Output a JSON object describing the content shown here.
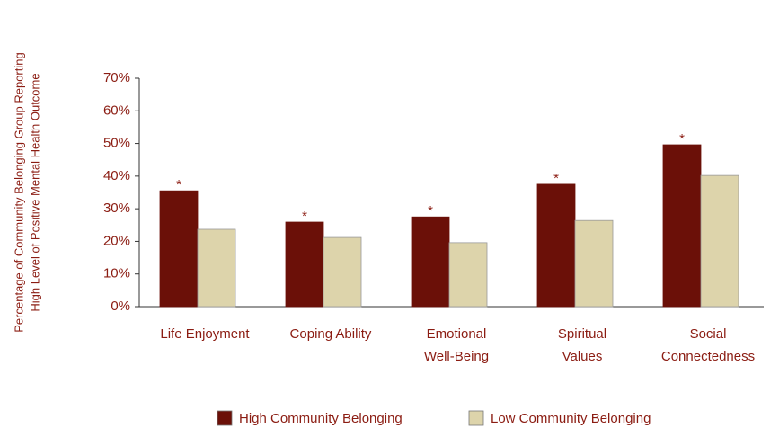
{
  "chart_data": {
    "type": "bar",
    "ylabel": [
      "Percentage of Community Belonging Group Reporting",
      "High Level of Positive Mental Health Outcome"
    ],
    "categories": [
      [
        "Life Enjoyment"
      ],
      [
        "Coping Ability"
      ],
      [
        "Emotional",
        "Well-Being"
      ],
      [
        "Spiritual",
        "Values"
      ],
      [
        "Social",
        "Connectedness"
      ]
    ],
    "series": [
      {
        "name": "High Community Belonging",
        "color": "#6b1008",
        "values": [
          35.5,
          25.9,
          27.5,
          37.5,
          49.6
        ]
      },
      {
        "name": "Low Community Belonging",
        "color": "#ddd4ab",
        "values": [
          23.7,
          21.2,
          19.6,
          26.4,
          40.2
        ]
      }
    ],
    "annotations": [
      "*",
      "*",
      "*",
      "*",
      "*"
    ],
    "ylim": [
      0,
      70
    ],
    "yticks": [
      {
        "value": 0,
        "label": "0%"
      },
      {
        "value": 10,
        "label": "10%"
      },
      {
        "value": 20,
        "label": "20%"
      },
      {
        "value": 30,
        "label": "30%"
      },
      {
        "value": 40,
        "label": "40%"
      },
      {
        "value": 50,
        "label": "50%"
      },
      {
        "value": 60,
        "label": "60%"
      },
      {
        "value": 70,
        "label": "70%"
      }
    ],
    "legend": "bottom"
  }
}
